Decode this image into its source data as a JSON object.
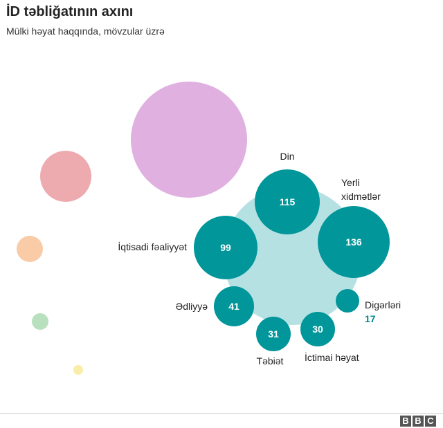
{
  "title": "İD təbliğatının axını",
  "subtitle": "Mülki həyat haqqında, mövzular üzrə",
  "colors": {
    "teal": "#00969a",
    "teal_value_text": "#00868b",
    "light_teal": "#b6e1e3",
    "pink": "#dfb0e0",
    "red": "#eeabaf",
    "orange": "#f9cba7",
    "green": "#b9e0bd",
    "yellow": "#f9edaa"
  },
  "brand": {
    "letters": [
      "B",
      "B",
      "C"
    ]
  },
  "chart_data": {
    "type": "bubble",
    "title": "İD təbliğatının axını",
    "subtitle": "Mülki həyat haqqında, mövzular üzrə",
    "categories": [
      {
        "label": "Din",
        "value": 115
      },
      {
        "label": "Yerli xidmətlər",
        "value": 136
      },
      {
        "label": "İqtisadi fəaliyyət",
        "value": 99
      },
      {
        "label": "Ədliyyə",
        "value": 41
      },
      {
        "label": "Təbiət",
        "value": 31
      },
      {
        "label": "İctimai həyat",
        "value": 30
      },
      {
        "label": "Digərləri",
        "value": 17
      }
    ],
    "unlabeled_bubbles": [
      "pink",
      "red",
      "orange",
      "green",
      "yellow"
    ]
  }
}
